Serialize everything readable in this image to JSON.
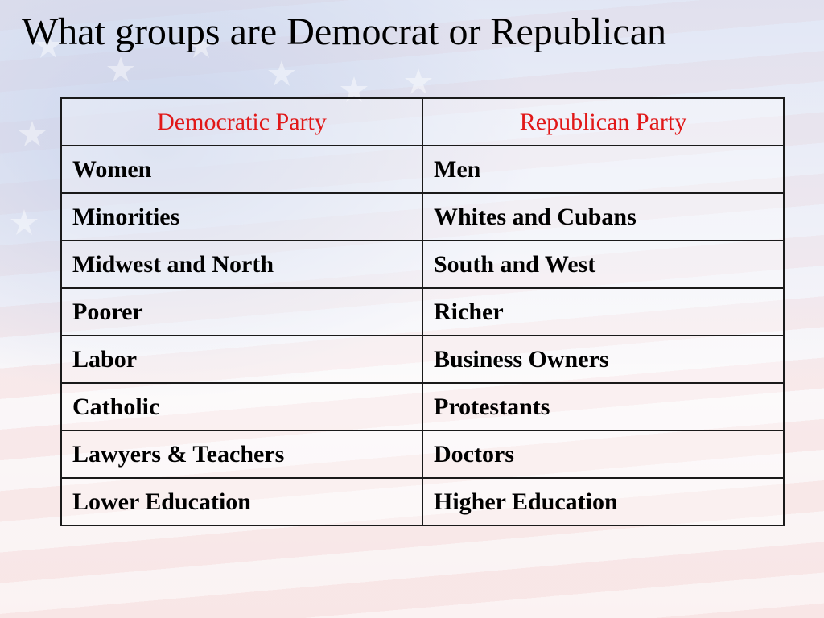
{
  "slide": {
    "title": "What groups are Democrat or Republican",
    "colors": {
      "header_text": "#e11818",
      "body_text": "#000000",
      "border": "#1a1a1a"
    }
  },
  "table": {
    "headers": [
      "Democratic Party",
      "Republican Party"
    ],
    "rows": [
      [
        "Women",
        "Men"
      ],
      [
        "Minorities",
        "Whites and Cubans"
      ],
      [
        "Midwest and North",
        "South and West"
      ],
      [
        "Poorer",
        "Richer"
      ],
      [
        "Labor",
        "Business Owners"
      ],
      [
        "Catholic",
        "Protestants"
      ],
      [
        "Lawyers & Teachers",
        "Doctors"
      ],
      [
        "Lower Education",
        "Higher Education"
      ]
    ]
  }
}
